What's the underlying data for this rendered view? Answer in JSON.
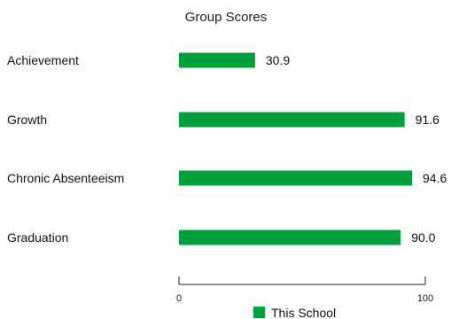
{
  "chart_data": {
    "type": "bar",
    "orientation": "horizontal",
    "title": "Group Scores",
    "categories": [
      "Achievement",
      "Growth",
      "Chronic Absenteeism",
      "Graduation"
    ],
    "series": [
      {
        "name": "This School",
        "color": "#00a03c",
        "values": [
          30.9,
          91.6,
          94.6,
          90.0
        ],
        "value_labels": [
          "30.9",
          "91.6",
          "94.6",
          "90.0"
        ]
      }
    ],
    "xlim": [
      0,
      100
    ],
    "x_ticks": [
      0,
      100
    ],
    "x_tick_labels": [
      "0",
      "100"
    ],
    "grid": false,
    "legend_position": "bottom"
  }
}
